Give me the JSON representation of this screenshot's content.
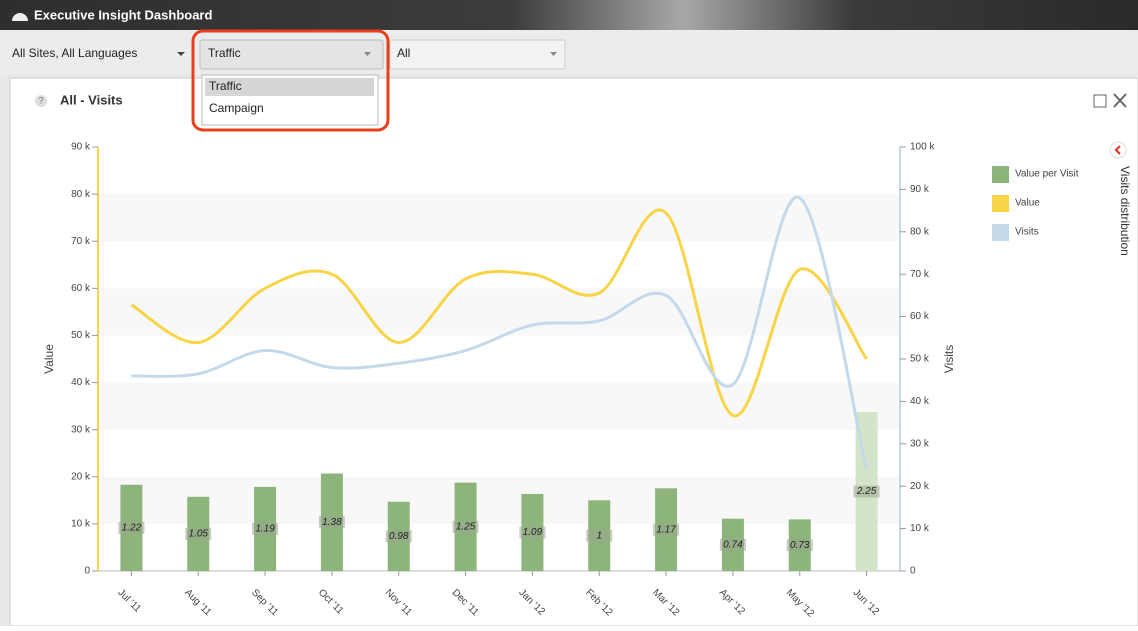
{
  "window": {
    "title": "Executive Insight Dashboard"
  },
  "toolbar": {
    "site_filter": "All Sites, All Languages",
    "report_filter": "Traffic",
    "report_options": [
      "Traffic",
      "Campaign"
    ],
    "third_filter": "All"
  },
  "panel": {
    "help": "?",
    "title": "All - Visits"
  },
  "sidebar": {
    "label": "Visits distribution"
  },
  "chart_data": {
    "type": "combo",
    "categories": [
      "Jul '11",
      "Aug '11",
      "Sep '11",
      "Oct '11",
      "Nov '11",
      "Dec '11",
      "Jan '12",
      "Feb '12",
      "Mar '12",
      "Apr '12",
      "May '12",
      "Jun '12"
    ],
    "ylabel": "Value",
    "y2label": "Visits",
    "ylim": [
      0,
      90000
    ],
    "yticks": [
      0,
      {
        "value": 10000,
        "label": "10 k"
      },
      {
        "value": 20000,
        "label": "20 k"
      },
      {
        "value": 30000,
        "label": "30 k"
      },
      {
        "value": 40000,
        "label": "40 k"
      },
      {
        "value": 50000,
        "label": "50 k"
      },
      {
        "value": 60000,
        "label": "60 k"
      },
      {
        "value": 70000,
        "label": "70 k"
      },
      {
        "value": 80000,
        "label": "80 k"
      },
      {
        "value": 90000,
        "label": "90 k"
      }
    ],
    "y2lim": [
      0,
      100000
    ],
    "y2ticks": [
      0,
      {
        "value": 10000,
        "label": "10 k"
      },
      {
        "value": 20000,
        "label": "20 k"
      },
      {
        "value": 30000,
        "label": "30 k"
      },
      {
        "value": 40000,
        "label": "40 k"
      },
      {
        "value": 50000,
        "label": "50 k"
      },
      {
        "value": 60000,
        "label": "60 k"
      },
      {
        "value": 70000,
        "label": "70 k"
      },
      {
        "value": 80000,
        "label": "80 k"
      },
      {
        "value": 90000,
        "label": "90 k"
      },
      {
        "value": 100000,
        "label": "100 k"
      }
    ],
    "y3lim": [
      0,
      6
    ],
    "series": [
      {
        "name": "Value per Visit",
        "type": "bar",
        "axis": "y3",
        "color": "#8db47a",
        "colors": [
          "#8db47a",
          "#8db47a",
          "#8db47a",
          "#8db47a",
          "#8db47a",
          "#8db47a",
          "#8db47a",
          "#8db47a",
          "#8db47a",
          "#8db47a",
          "#8db47a",
          "#d4e4c8"
        ],
        "values": [
          1.22,
          1.05,
          1.19,
          1.38,
          0.98,
          1.25,
          1.09,
          1,
          1.17,
          0.74,
          0.73,
          2.25
        ]
      },
      {
        "name": "Value",
        "type": "line",
        "axis": "y",
        "color": "#f8d447",
        "values": [
          56500,
          48500,
          60000,
          63000,
          48500,
          62000,
          63000,
          59000,
          76000,
          33000,
          64000,
          45000
        ]
      },
      {
        "name": "Visits",
        "type": "line",
        "axis": "y2",
        "color": "#c5d9ea",
        "values": [
          46000,
          46500,
          52000,
          48000,
          49000,
          52000,
          58000,
          59000,
          65000,
          44000,
          88000,
          24000
        ]
      }
    ]
  }
}
